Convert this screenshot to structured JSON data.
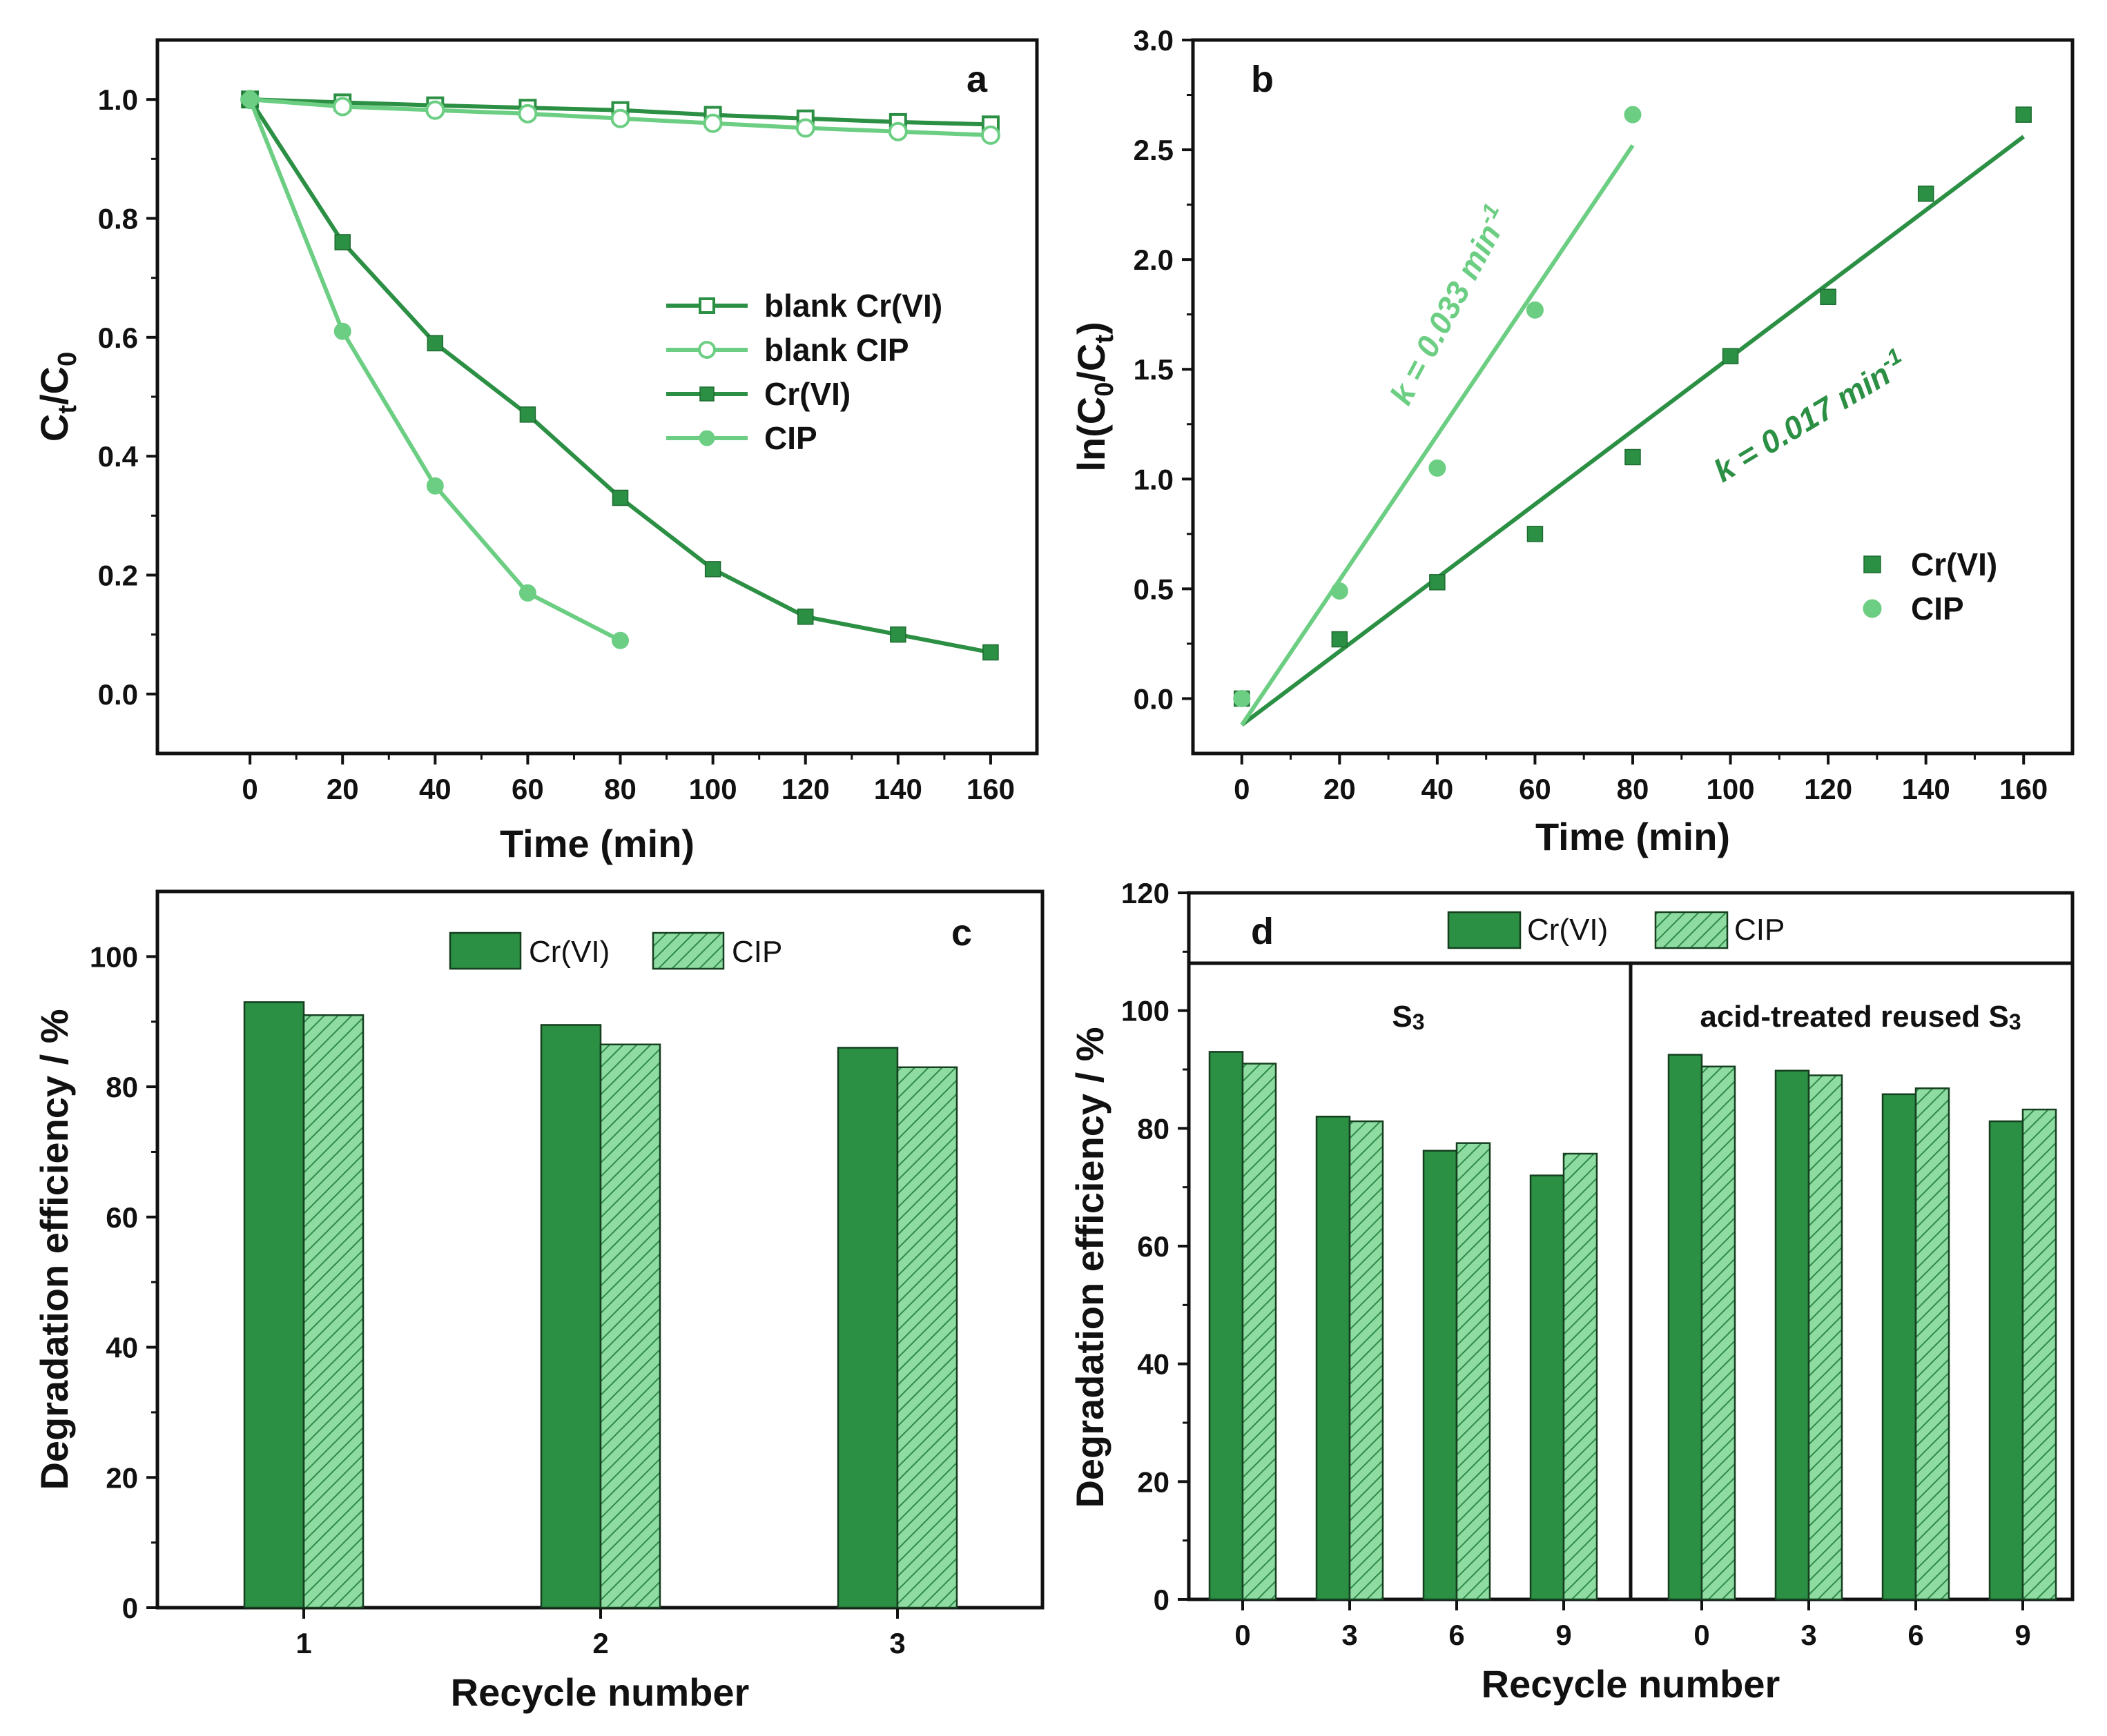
{
  "colors": {
    "dark": "#2b8f44",
    "light": "#6cce83",
    "darkEdge": "#1e6b31",
    "lightEdge": "#3f9a55"
  },
  "chart_data": [
    {
      "id": "a",
      "type": "line",
      "panel_label": "a",
      "xlabel": "Time (min)",
      "ylabel_main": "C",
      "ylabel_sub1": "t",
      "ylabel_sep": "/C",
      "ylabel_sub2": "0",
      "xlim": [
        -20,
        170
      ],
      "ylim": [
        -0.1,
        1.1
      ],
      "xticks": [
        0,
        20,
        40,
        60,
        80,
        100,
        120,
        140,
        160
      ],
      "yticks": [
        0.0,
        0.2,
        0.4,
        0.6,
        0.8,
        1.0
      ],
      "ytick_labels": [
        "0.0",
        "0.2",
        "0.4",
        "0.6",
        "0.8",
        "1.0"
      ],
      "legend_position": "center-right",
      "series": [
        {
          "name": "blank Cr(VI)",
          "marker": "square-open",
          "color": "dark",
          "x": [
            0,
            20,
            40,
            60,
            80,
            100,
            120,
            140,
            160
          ],
          "y": [
            1.0,
            0.995,
            0.99,
            0.986,
            0.982,
            0.974,
            0.968,
            0.962,
            0.958
          ]
        },
        {
          "name": "blank CIP",
          "marker": "circle-open",
          "color": "light",
          "x": [
            0,
            20,
            40,
            60,
            80,
            100,
            120,
            140,
            160
          ],
          "y": [
            1.0,
            0.988,
            0.982,
            0.976,
            0.968,
            0.96,
            0.952,
            0.946,
            0.94
          ]
        },
        {
          "name": "Cr(VI)",
          "marker": "square",
          "color": "dark",
          "x": [
            0,
            20,
            40,
            60,
            80,
            100,
            120,
            140,
            160
          ],
          "y": [
            1.0,
            0.76,
            0.59,
            0.47,
            0.33,
            0.21,
            0.13,
            0.1,
            0.07
          ]
        },
        {
          "name": "CIP",
          "marker": "circle",
          "color": "light",
          "x": [
            0,
            20,
            40,
            60,
            80
          ],
          "y": [
            1.0,
            0.61,
            0.35,
            0.17,
            0.09
          ]
        }
      ]
    },
    {
      "id": "b",
      "type": "scatter",
      "panel_label": "b",
      "xlabel": "Time (min)",
      "ylabel_pre": "ln(C",
      "ylabel_sub1": "0",
      "ylabel_sep": "/C",
      "ylabel_sub2": "t",
      "ylabel_post": ")",
      "xlim": [
        -10,
        170
      ],
      "ylim": [
        -0.25,
        3.0
      ],
      "xticks": [
        0,
        20,
        40,
        60,
        80,
        100,
        120,
        140,
        160
      ],
      "yticks": [
        0.0,
        0.5,
        1.0,
        1.5,
        2.0,
        2.5,
        3.0
      ],
      "ytick_labels": [
        "0.0",
        "0.5",
        "1.0",
        "1.5",
        "2.0",
        "2.5",
        "3.0"
      ],
      "legend_position": "right",
      "series": [
        {
          "name": "Cr(VI)",
          "marker": "square",
          "color": "dark",
          "x": [
            0,
            20,
            40,
            60,
            80,
            100,
            120,
            140,
            160
          ],
          "y": [
            0.0,
            0.27,
            0.53,
            0.75,
            1.1,
            1.56,
            1.83,
            2.3,
            2.66
          ],
          "fit": {
            "x": [
              0,
              160
            ],
            "y": [
              -0.12,
              2.56
            ]
          }
        },
        {
          "name": "CIP",
          "marker": "circle",
          "color": "light",
          "x": [
            0,
            20,
            40,
            60,
            80
          ],
          "y": [
            0.0,
            0.49,
            1.05,
            1.77,
            2.66
          ],
          "fit": {
            "x": [
              0,
              80
            ],
            "y": [
              -0.12,
              2.52
            ]
          }
        }
      ],
      "annotations": {
        "cip_rate_prefix": "k = 0.033 min",
        "cip_rate_sup": "-1",
        "cr_rate_prefix": "k = 0.017 min",
        "cr_rate_sup": "-1"
      }
    },
    {
      "id": "c",
      "type": "bar",
      "panel_label": "c",
      "xlabel": "Recycle number",
      "ylabel": "Degradation efficiency / %",
      "categories": [
        "1",
        "2",
        "3"
      ],
      "ylim": [
        0,
        110
      ],
      "yticks": [
        0,
        20,
        40,
        60,
        80,
        100
      ],
      "series": [
        {
          "name": "Cr(VI)",
          "pattern": "solid",
          "color": "dark",
          "values": [
            93,
            89.5,
            86
          ]
        },
        {
          "name": "CIP",
          "pattern": "hatched",
          "color": "light",
          "values": [
            91,
            86.5,
            83
          ]
        }
      ],
      "legend_position": "top-center"
    },
    {
      "id": "d",
      "type": "bar",
      "panel_label": "d",
      "xlabel": "Recycle number",
      "ylabel": "Degradation efficiency / %",
      "ylim": [
        0,
        120
      ],
      "yticks": [
        0,
        20,
        40,
        60,
        80,
        100,
        120
      ],
      "groups": [
        {
          "title_main": "S",
          "title_sub": "3",
          "categories": [
            "0",
            "3",
            "6",
            "9"
          ],
          "series": [
            {
              "name": "Cr(VI)",
              "values": [
                93,
                82,
                76.2,
                72
              ]
            },
            {
              "name": "CIP",
              "values": [
                91,
                81.2,
                77.5,
                75.7
              ]
            }
          ]
        },
        {
          "title_main": "acid-treated reused S",
          "title_sub": "3",
          "categories": [
            "0",
            "3",
            "6",
            "9"
          ],
          "series": [
            {
              "name": "Cr(VI)",
              "values": [
                92.5,
                89.8,
                85.8,
                81.2
              ]
            },
            {
              "name": "CIP",
              "values": [
                90.5,
                89,
                86.8,
                83.2
              ]
            }
          ]
        }
      ],
      "legend": [
        "Cr(VI)",
        "CIP"
      ],
      "legend_position": "top-center"
    }
  ]
}
